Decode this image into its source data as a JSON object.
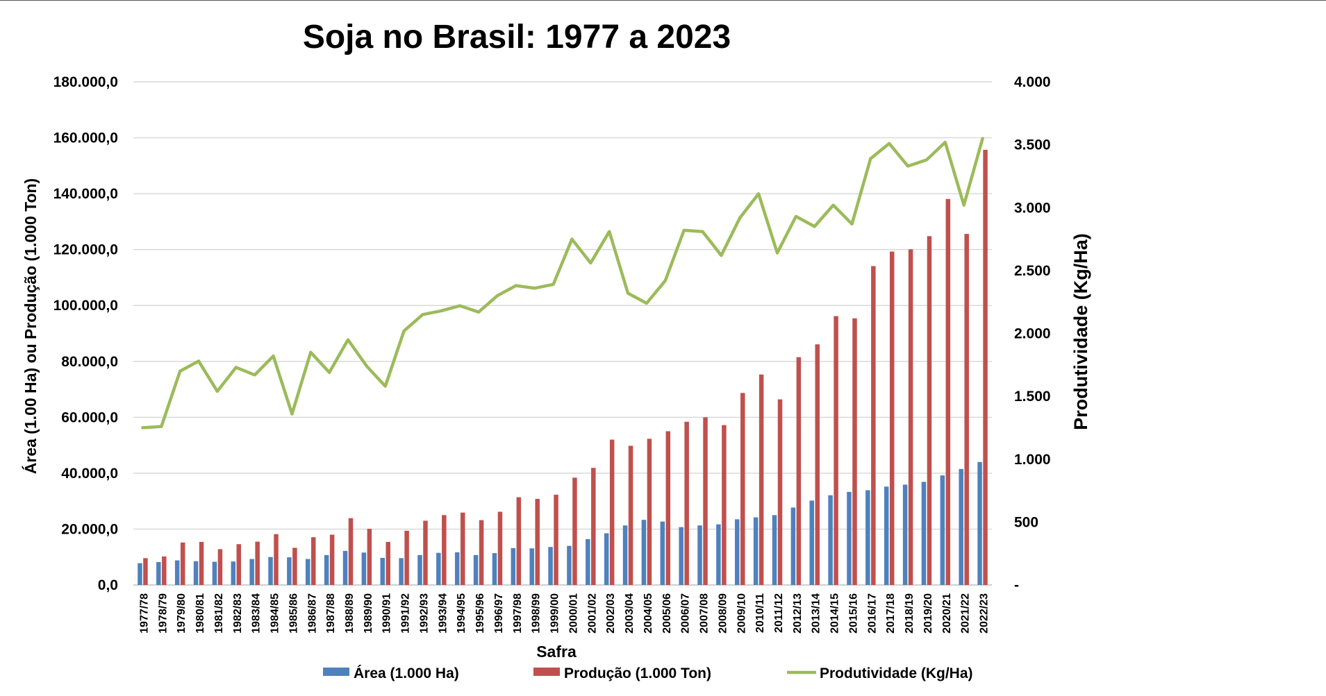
{
  "chart_data": {
    "type": "bar",
    "title": "Soja no Brasil: 1977 a 2023",
    "xlabel": "Safra",
    "ylabel": "Área (1.00 Ha) ou Produção (1.000 Ton)",
    "y2label": "Produtividade (Kg/Ha)",
    "ylim": [
      0,
      180000
    ],
    "y2lim": [
      0,
      4000
    ],
    "yticks": [
      "0,0",
      "20.000,0",
      "40.000,0",
      "60.000,0",
      "80.000,0",
      "100.000,0",
      "120.000,0",
      "140.000,0",
      "160.000,0",
      "180.000,0"
    ],
    "y2ticks": [
      "-",
      "500",
      "1.000",
      "1.500",
      "2.000",
      "2.500",
      "3.000",
      "3.500",
      "4.000"
    ],
    "grid": true,
    "legend_position": "bottom",
    "categories": [
      "1977/78",
      "1978/79",
      "1979/80",
      "1980/81",
      "1981/82",
      "1982/83",
      "1983/84",
      "1984/85",
      "1985/86",
      "1986/87",
      "1987/88",
      "1988/89",
      "1989/90",
      "1990/91",
      "1991/92",
      "1992/93",
      "1993/94",
      "1994/95",
      "1995/96",
      "1996/97",
      "1997/98",
      "1998/99",
      "1999/00",
      "2000/01",
      "2001/02",
      "2002/03",
      "2003/04",
      "2004/05",
      "2005/06",
      "2006/07",
      "2007/08",
      "2008/09",
      "2009/10",
      "2010/11",
      "2011/12",
      "2012/13",
      "2013/14",
      "2014/15",
      "2015/16",
      "2016/17",
      "2017/18",
      "2018/19",
      "2019/20",
      "2020/21",
      "2021/22",
      "2022/23"
    ],
    "series": [
      {
        "name": "Área (1.000 Ha)",
        "type": "bar",
        "axis": "left",
        "color": "#4f81bd",
        "values": [
          7800,
          8200,
          8800,
          8500,
          8300,
          8400,
          9300,
          10000,
          9900,
          9300,
          10700,
          12200,
          11600,
          9700,
          9600,
          10700,
          11500,
          11700,
          10700,
          11400,
          13200,
          13100,
          13600,
          14000,
          16400,
          18500,
          21300,
          23300,
          22700,
          20700,
          21300,
          21700,
          23500,
          24200,
          25000,
          27700,
          30200,
          32100,
          33300,
          33900,
          35200,
          35900,
          36900,
          39200,
          41500,
          44000
        ]
      },
      {
        "name": "Produção (1.000 Ton)",
        "type": "bar",
        "axis": "left",
        "color": "#c0504d",
        "values": [
          9600,
          10200,
          15200,
          15400,
          12800,
          14600,
          15500,
          18200,
          13300,
          17100,
          18000,
          23900,
          20100,
          15400,
          19400,
          23000,
          25000,
          25900,
          23200,
          26200,
          31400,
          30800,
          32300,
          38400,
          41900,
          52000,
          49800,
          52300,
          55000,
          58400,
          60000,
          57200,
          68700,
          75300,
          66400,
          81500,
          86100,
          96200,
          95400,
          114100,
          119300,
          120100,
          124800,
          138100,
          125600,
          155700
        ]
      },
      {
        "name": "Produtividade (Kg/Ha)",
        "type": "line",
        "axis": "right",
        "color": "#9bbb59",
        "values": [
          1250,
          1260,
          1700,
          1780,
          1540,
          1730,
          1670,
          1820,
          1360,
          1850,
          1690,
          1950,
          1740,
          1580,
          2020,
          2150,
          2180,
          2220,
          2170,
          2300,
          2380,
          2360,
          2390,
          2750,
          2560,
          2810,
          2320,
          2240,
          2420,
          2820,
          2810,
          2620,
          2920,
          3110,
          2640,
          2930,
          2850,
          3020,
          2870,
          3390,
          3510,
          3330,
          3380,
          3520,
          3020,
          3550
        ]
      }
    ]
  }
}
